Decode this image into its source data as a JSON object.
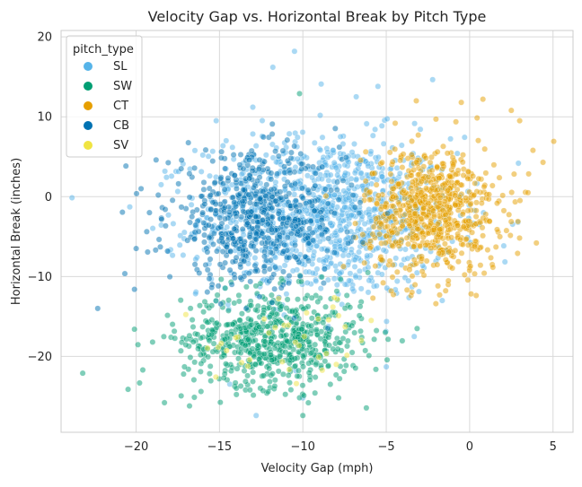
{
  "chart_data": {
    "type": "scatter",
    "title": "Velocity Gap vs. Horizontal Break by Pitch Type",
    "xlabel": "Velocity Gap (mph)",
    "ylabel": "Horizontal Break (inches)",
    "xlim": [
      -24.5,
      6.2
    ],
    "ylim": [
      -29.5,
      20.8
    ],
    "xticks": [
      -20,
      -15,
      -10,
      -5,
      0,
      5
    ],
    "yticks": [
      -20,
      -10,
      0,
      10,
      20
    ],
    "xtick_labels": [
      "−20",
      "−15",
      "−10",
      "−5",
      "0",
      "5"
    ],
    "ytick_labels": [
      "−20",
      "−10",
      "0",
      "10",
      "20"
    ],
    "grid": true,
    "legend": {
      "title": "pitch_type",
      "placement": "top-left"
    },
    "series": [
      {
        "name": "SL",
        "color": "#56B4E9",
        "center": [
          -8.5,
          -2.5
        ],
        "spread": [
          3.8,
          5.0
        ],
        "count": 1100,
        "outliers": [
          [
            -11.8,
            16.2
          ],
          [
            -10.5,
            18.2
          ],
          [
            -8.9,
            14.1
          ],
          [
            -13.0,
            11.2
          ],
          [
            -15.2,
            9.5
          ],
          [
            -14.6,
            7.0
          ],
          [
            -16.0,
            5.2
          ],
          [
            -6.8,
            12.5
          ],
          [
            -5.5,
            13.8
          ],
          [
            -12.8,
            -27.4
          ],
          [
            -10.0,
            -25.2
          ],
          [
            -5.0,
            -21.3
          ],
          [
            -18.5,
            1.5
          ]
        ]
      },
      {
        "name": "SW",
        "color": "#009E73",
        "center": [
          -11.8,
          -17.8
        ],
        "spread": [
          2.7,
          3.0
        ],
        "count": 650,
        "outliers": [
          [
            -23.2,
            -22.1
          ],
          [
            -20.1,
            -16.6
          ],
          [
            -19.6,
            -21.7
          ],
          [
            -18.3,
            -25.8
          ],
          [
            -16.8,
            -26.2
          ],
          [
            -10.0,
            -27.4
          ],
          [
            -10.2,
            12.9
          ],
          [
            -6.1,
            -9.5
          ]
        ]
      },
      {
        "name": "CT",
        "color": "#E69F00",
        "center": [
          -2.2,
          -1.8
        ],
        "spread": [
          2.0,
          4.0
        ],
        "count": 700,
        "outliers": [
          [
            2.5,
            10.8
          ],
          [
            3.0,
            9.5
          ],
          [
            3.8,
            5.8
          ],
          [
            4.4,
            4.3
          ],
          [
            4.0,
            -5.8
          ],
          [
            3.5,
            0.5
          ],
          [
            2.9,
            -3.1
          ],
          [
            0.8,
            12.2
          ],
          [
            -0.5,
            11.8
          ],
          [
            -1.8,
            -12.3
          ],
          [
            -4.7,
            -11.8
          ],
          [
            -5.8,
            -12.7
          ],
          [
            -3.2,
            12.0
          ]
        ]
      },
      {
        "name": "CB",
        "color": "#0072B2",
        "center": [
          -12.8,
          -2.8
        ],
        "spread": [
          2.6,
          4.0
        ],
        "count": 600,
        "outliers": [
          [
            -22.3,
            -14.0
          ],
          [
            -20.1,
            -11.6
          ],
          [
            -20.0,
            -6.5
          ],
          [
            -18.8,
            4.6
          ],
          [
            -19.2,
            -2.0
          ],
          [
            -17.3,
            3.5
          ]
        ]
      },
      {
        "name": "SV",
        "color": "#F0E442",
        "center": [
          -10.5,
          -18.2
        ],
        "spread": [
          2.6,
          3.0
        ],
        "count": 35,
        "outliers": [
          [
            -5.9,
            -15.5
          ],
          [
            -6.5,
            -18.0
          ],
          [
            -8.0,
            -21.0
          ]
        ]
      }
    ]
  }
}
